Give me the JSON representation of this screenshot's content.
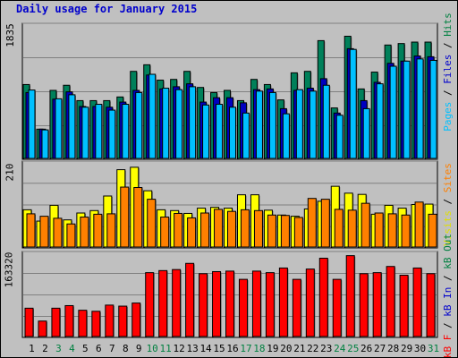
{
  "chart_data": {
    "title": "Daily usage for January 2015",
    "type": "bar",
    "days": [
      "1",
      "2",
      "3",
      "4",
      "5",
      "6",
      "7",
      "8",
      "9",
      "10",
      "11",
      "12",
      "13",
      "14",
      "15",
      "16",
      "17",
      "18",
      "19",
      "20",
      "21",
      "22",
      "23",
      "24",
      "25",
      "26",
      "27",
      "28",
      "29",
      "30",
      "31"
    ],
    "weekend_days": [
      "3",
      "4",
      "10",
      "11",
      "17",
      "18",
      "24",
      "25",
      "31"
    ],
    "panels": [
      {
        "id": "hits",
        "max_label": "1835",
        "ymax": 1835,
        "right_label": [
          {
            "text": "Pages",
            "color": "#00c0ff"
          },
          {
            "text": " / ",
            "color": "#000000"
          },
          {
            "text": "Files",
            "color": "#0000cc"
          },
          {
            "text": " / ",
            "color": "#000000"
          },
          {
            "text": "Hits",
            "color": "#008040"
          }
        ],
        "series": [
          {
            "name": "Hits",
            "color": "#00805a",
            "values": [
              1010,
              400,
              930,
              1000,
              790,
              790,
              790,
              840,
              1190,
              1280,
              1070,
              1080,
              1190,
              970,
              900,
              930,
              790,
              1080,
              1010,
              800,
              1170,
              1190,
              1610,
              690,
              1670,
              950,
              1180,
              1550,
              1570,
              1590,
              1590
            ]
          },
          {
            "name": "Files",
            "color": "#0000c0",
            "values": [
              900,
              400,
              810,
              910,
              710,
              710,
              700,
              770,
              930,
              1140,
              950,
              980,
              1020,
              770,
              830,
              830,
              760,
              940,
              950,
              680,
              930,
              960,
              1090,
              620,
              1500,
              790,
              1040,
              1300,
              1330,
              1400,
              1390
            ]
          },
          {
            "name": "Pages",
            "color": "#00c0ff",
            "values": [
              935,
              390,
              815,
              870,
              700,
              740,
              660,
              740,
              900,
              1150,
              960,
              940,
              980,
              730,
              740,
              700,
              620,
              920,
              900,
              610,
              940,
              920,
              1000,
              590,
              1490,
              680,
              1020,
              1260,
              1330,
              1360,
              1340
            ]
          }
        ]
      },
      {
        "id": "visits",
        "max_label": "210",
        "ymax": 210,
        "right_label": [
          {
            "text": "Visits",
            "color": "#e0e000"
          },
          {
            "text": " / ",
            "color": "#000000"
          },
          {
            "text": "Sites",
            "color": "#ff8000"
          }
        ],
        "series": [
          {
            "name": "Visits",
            "color": "#ffff00",
            "values": [
              92,
              64,
              103,
              67,
              84,
              90,
              126,
              191,
              197,
              139,
              92,
              90,
              83,
              96,
              98,
              96,
              129,
              129,
              91,
              79,
              76,
              94,
              113,
              150,
              133,
              130,
              81,
              103,
              96,
              105,
              106
            ]
          },
          {
            "name": "Sites",
            "color": "#ff8000",
            "values": [
              82,
              76,
              71,
              57,
              74,
              81,
              82,
              148,
              147,
              118,
              74,
              83,
              72,
              84,
              93,
              88,
              92,
              90,
              79,
              78,
              73,
              120,
              118,
              93,
              91,
              108,
              84,
              82,
              79,
              111,
              81
            ]
          }
        ]
      },
      {
        "id": "kbytes",
        "max_label": "163320",
        "ymax": 163320,
        "right_label": [
          {
            "text": "kB F",
            "color": "#ff0000"
          },
          {
            "text": " / ",
            "color": "#000000"
          },
          {
            "text": "kB In",
            "color": "#0000cc"
          },
          {
            "text": " / ",
            "color": "#000000"
          },
          {
            "text": "kB Out",
            "color": "#008040"
          }
        ],
        "series": [
          {
            "name": "kB F",
            "color": "#ff0000",
            "values": [
              55000,
              30000,
              55000,
              60000,
              51000,
              49000,
              61000,
              59000,
              65000,
              124000,
              128000,
              130000,
              142000,
              122000,
              126000,
              127000,
              111000,
              127000,
              124000,
              133000,
              111000,
              131000,
              152000,
              111000,
              157000,
              122000,
              124000,
              136000,
              119000,
              133000,
              122000
            ]
          }
        ]
      }
    ]
  }
}
